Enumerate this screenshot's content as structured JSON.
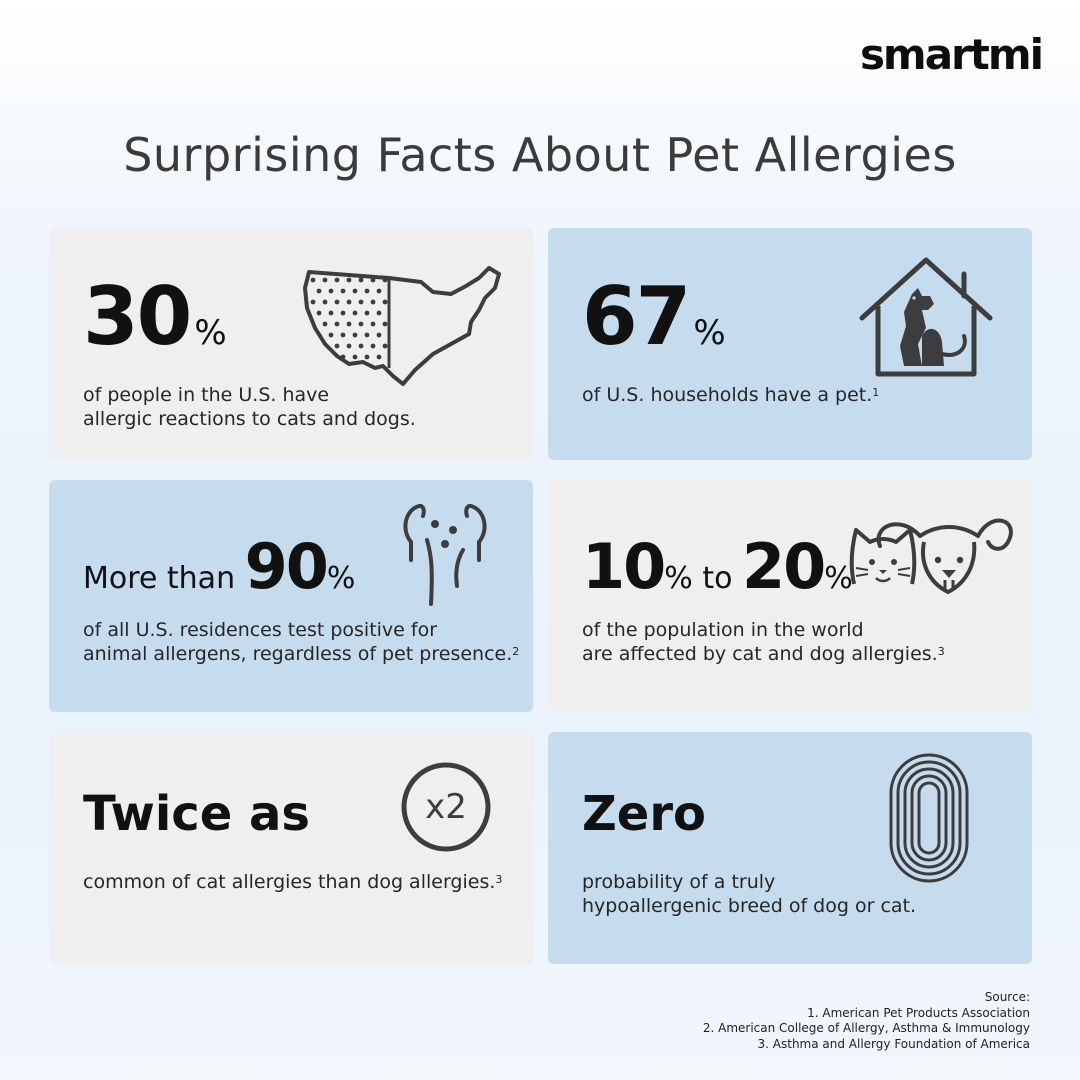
{
  "brand": {
    "logo": "smartmi"
  },
  "title": "Surprising Facts About Pet Allergies",
  "cards": [
    {
      "stat": "30",
      "unit": "%",
      "line1": "of people in the U.S. have",
      "line2": "allergic reactions to cats and dogs.",
      "icon": "us-map-icon",
      "color": "#efefef"
    },
    {
      "stat": "67",
      "unit": "%",
      "line1": "of U.S. households have a pet.",
      "ref": "1",
      "icon": "house-pets-icon",
      "color": "#c5dcee"
    },
    {
      "prefix": "More than ",
      "stat": "90",
      "unit": "%",
      "line1": "of all U.S. residences test positive for",
      "line2": "animal allergens, regardless of pet presence.",
      "ref": "2",
      "icon": "allergen-particles-icon",
      "color": "#c5dcee"
    },
    {
      "stat": "10",
      "unit": "%",
      "middle": " to ",
      "stat2": "20",
      "unit2": "%",
      "line1": "of the population in the world",
      "line2": "are affected by cat and dog allergies.",
      "ref": "3",
      "icon": "cat-dog-faces-icon",
      "color": "#efefef"
    },
    {
      "headline": "Twice as",
      "line1": "common of cat allergies than dog allergies.",
      "ref": "3",
      "icon": "x2-icon",
      "icon_text": "x2",
      "color": "#efefef"
    },
    {
      "headline": "Zero",
      "line1": "probability of a truly",
      "line2": "hypoallergenic breed of dog or cat.",
      "icon": "zero-rings-icon",
      "color": "#c5dcee"
    }
  ],
  "sources": {
    "heading": "Source:",
    "items": [
      "1. American Pet Products Association",
      "2. American College of Allergy, Asthma & Immunology",
      "3. Asthma and Allergy Foundation of America"
    ]
  }
}
